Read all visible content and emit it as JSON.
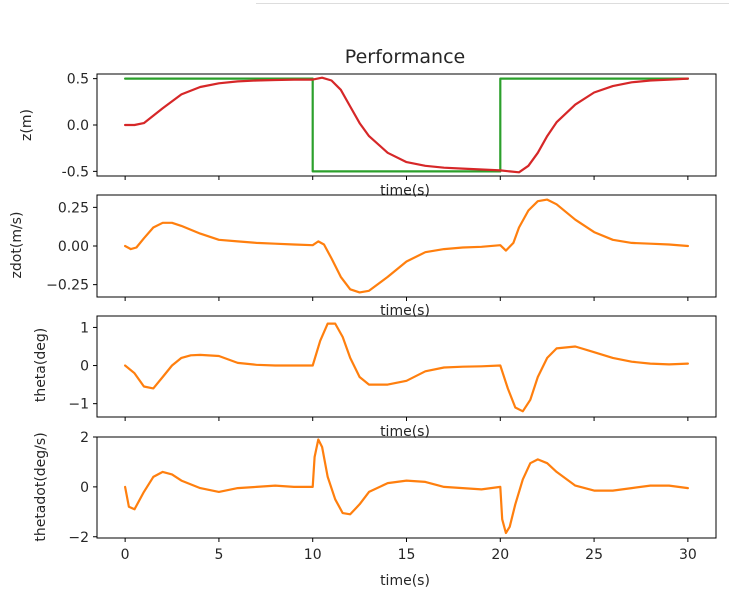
{
  "figure": {
    "title": "Performance"
  },
  "chart_data": [
    {
      "type": "line",
      "ylabel": "z(m)",
      "xlabel": "time(s)",
      "xlim": [
        -1.5,
        31.5
      ],
      "ylim": [
        -0.55,
        0.55
      ],
      "yticks": [
        "0.5",
        "0.0",
        "-0.5"
      ],
      "ytick_values": [
        0.5,
        0.0,
        -0.5
      ],
      "grid": false,
      "series": [
        {
          "color": "#2ca02c",
          "x": [
            0,
            10,
            10,
            20,
            20,
            30
          ],
          "y": [
            0.5,
            0.5,
            -0.5,
            -0.5,
            0.5,
            0.5
          ]
        },
        {
          "color": "#d62728",
          "x": [
            0,
            0.5,
            1,
            2,
            3,
            4,
            5,
            6,
            7,
            8,
            9,
            10,
            10.5,
            11,
            11.5,
            12,
            12.5,
            13,
            14,
            15,
            16,
            17,
            18,
            19,
            20,
            20.5,
            21,
            21.5,
            22,
            22.5,
            23,
            24,
            25,
            26,
            27,
            28,
            29,
            30
          ],
          "y": [
            0.0,
            0.0,
            0.02,
            0.18,
            0.33,
            0.41,
            0.45,
            0.47,
            0.48,
            0.485,
            0.49,
            0.49,
            0.51,
            0.48,
            0.38,
            0.2,
            0.02,
            -0.12,
            -0.3,
            -0.4,
            -0.44,
            -0.46,
            -0.47,
            -0.48,
            -0.49,
            -0.5,
            -0.51,
            -0.44,
            -0.3,
            -0.12,
            0.03,
            0.22,
            0.35,
            0.42,
            0.46,
            0.48,
            0.49,
            0.5
          ]
        }
      ]
    },
    {
      "type": "line",
      "ylabel": "zdot(m/s)",
      "xlabel": "time(s)",
      "xlim": [
        -1.5,
        31.5
      ],
      "ylim": [
        -0.33,
        0.33
      ],
      "yticks": [
        "0.25",
        "0.00",
        "−0.25"
      ],
      "ytick_values": [
        0.25,
        0.0,
        -0.25
      ],
      "grid": false,
      "series": [
        {
          "color": "#ff7f0e",
          "x": [
            0,
            0.3,
            0.6,
            1,
            1.5,
            2,
            2.5,
            3,
            4,
            5,
            6,
            7,
            8,
            9,
            10,
            10.3,
            10.6,
            11,
            11.5,
            12,
            12.5,
            13,
            14,
            15,
            16,
            17,
            18,
            19,
            20,
            20.3,
            20.7,
            21,
            21.5,
            22,
            22.5,
            23,
            24,
            25,
            26,
            27,
            28,
            29,
            30
          ],
          "y": [
            0.0,
            -0.02,
            -0.01,
            0.05,
            0.12,
            0.15,
            0.15,
            0.13,
            0.08,
            0.04,
            0.03,
            0.02,
            0.015,
            0.01,
            0.005,
            0.03,
            0.01,
            -0.08,
            -0.2,
            -0.28,
            -0.3,
            -0.29,
            -0.2,
            -0.1,
            -0.04,
            -0.02,
            -0.01,
            -0.005,
            0.005,
            -0.03,
            0.02,
            0.12,
            0.23,
            0.29,
            0.3,
            0.27,
            0.17,
            0.09,
            0.04,
            0.02,
            0.015,
            0.01,
            0.0
          ]
        }
      ]
    },
    {
      "type": "line",
      "ylabel": "theta(deg)",
      "xlabel": "time(s)",
      "xlim": [
        -1.5,
        31.5
      ],
      "ylim": [
        -1.35,
        1.3
      ],
      "yticks": [
        "1",
        "0",
        "−1"
      ],
      "ytick_values": [
        1,
        0,
        -1
      ],
      "grid": false,
      "series": [
        {
          "color": "#ff7f0e",
          "x": [
            0,
            0.5,
            1,
            1.5,
            2,
            2.5,
            3,
            3.5,
            4,
            5,
            6,
            7,
            8,
            9,
            10,
            10.4,
            10.8,
            11.2,
            11.6,
            12,
            12.5,
            13,
            14,
            15,
            16,
            17,
            18,
            19,
            20,
            20.4,
            20.8,
            21.2,
            21.6,
            22,
            22.5,
            23,
            24,
            25,
            26,
            27,
            28,
            29,
            30
          ],
          "y": [
            0.0,
            -0.2,
            -0.55,
            -0.6,
            -0.3,
            0.0,
            0.2,
            0.27,
            0.28,
            0.25,
            0.07,
            0.02,
            0.0,
            0.0,
            0.0,
            0.65,
            1.1,
            1.1,
            0.75,
            0.2,
            -0.3,
            -0.5,
            -0.5,
            -0.4,
            -0.15,
            -0.05,
            -0.03,
            -0.02,
            0.0,
            -0.6,
            -1.1,
            -1.2,
            -0.9,
            -0.3,
            0.2,
            0.45,
            0.5,
            0.35,
            0.2,
            0.1,
            0.05,
            0.03,
            0.05
          ]
        }
      ]
    },
    {
      "type": "line",
      "ylabel": "thetadot(deg/s)",
      "xlabel": "time(s)",
      "xlim": [
        -1.5,
        31.5
      ],
      "ylim": [
        -2.05,
        2.0
      ],
      "yticks": [
        "2",
        "0",
        "−2"
      ],
      "ytick_values": [
        2,
        0,
        -2
      ],
      "xticks": [
        "0",
        "5",
        "10",
        "15",
        "20",
        "25",
        "30"
      ],
      "xtick_values": [
        0,
        5,
        10,
        15,
        20,
        25,
        30
      ],
      "grid": false,
      "series": [
        {
          "color": "#ff7f0e",
          "x": [
            0,
            0.2,
            0.5,
            1,
            1.5,
            2,
            2.5,
            3,
            4,
            5,
            6,
            7,
            8,
            9,
            10,
            10.1,
            10.3,
            10.5,
            10.8,
            11.2,
            11.6,
            12,
            12.5,
            13,
            14,
            15,
            16,
            17,
            18,
            19,
            20,
            20.1,
            20.3,
            20.5,
            20.8,
            21.2,
            21.6,
            22,
            22.5,
            23,
            24,
            25,
            26,
            27,
            28,
            29,
            30
          ],
          "y": [
            0.0,
            -0.8,
            -0.9,
            -0.2,
            0.4,
            0.6,
            0.5,
            0.25,
            -0.05,
            -0.2,
            -0.05,
            0.0,
            0.05,
            0.0,
            0.0,
            1.2,
            1.9,
            1.6,
            0.4,
            -0.5,
            -1.05,
            -1.1,
            -0.7,
            -0.2,
            0.15,
            0.25,
            0.2,
            0.0,
            -0.05,
            -0.1,
            0.0,
            -1.3,
            -1.85,
            -1.6,
            -0.7,
            0.3,
            0.95,
            1.1,
            0.95,
            0.6,
            0.05,
            -0.15,
            -0.15,
            -0.05,
            0.05,
            0.05,
            -0.05
          ]
        }
      ]
    }
  ]
}
